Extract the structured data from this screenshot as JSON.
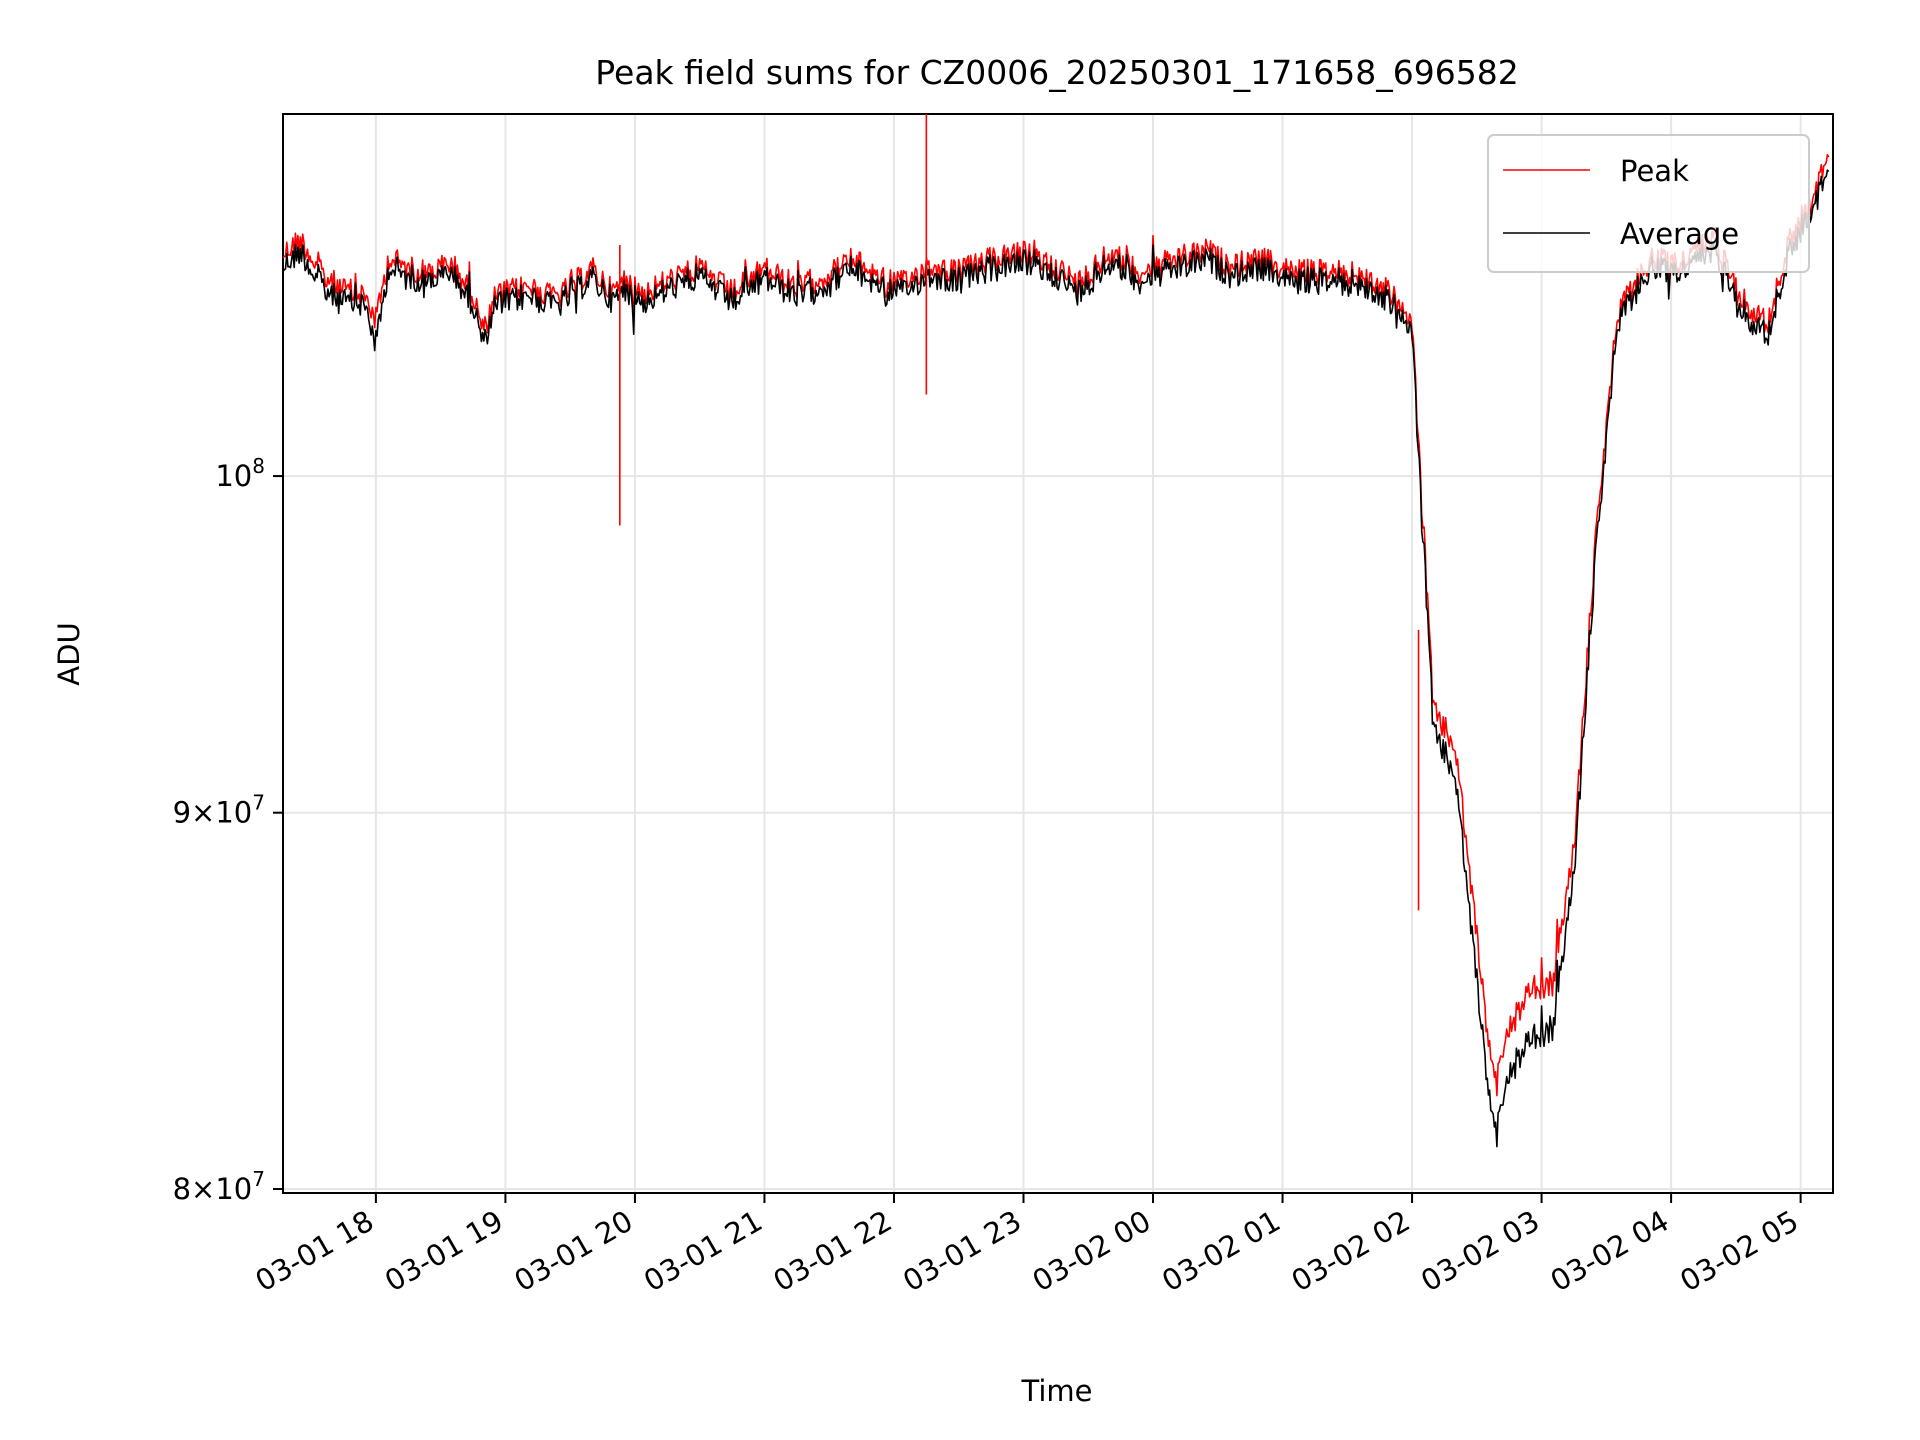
{
  "chart_data": {
    "type": "line",
    "title": "Peak field sums for CZ0006_20250301_171658_696582",
    "xlabel": "Time",
    "ylabel": "ADU",
    "x_ticks": [
      "03-01 18",
      "03-01 19",
      "03-01 20",
      "03-01 21",
      "03-01 22",
      "03-01 23",
      "03-02 00",
      "03-02 01",
      "03-02 02",
      "03-02 03",
      "03-02 04",
      "03-02 05"
    ],
    "y_ticks": [
      {
        "value": 80000000,
        "mantissa": "8",
        "base": "10",
        "exp": "7"
      },
      {
        "value": 90000000,
        "mantissa": "9",
        "base": "10",
        "exp": "7"
      },
      {
        "value": 100000000,
        "mantissa": "",
        "base": "10",
        "exp": "8"
      }
    ],
    "y_scale": "log",
    "xlim": [
      "2025-03-01 17:16:58",
      "2025-03-02 05:15:00"
    ],
    "ylim": [
      79900000,
      112000000
    ],
    "grid": true,
    "legend": {
      "position": "top-right"
    },
    "series": [
      {
        "name": "Peak",
        "color": "#ff0000",
        "x": [
          "2025-03-01 17:17",
          "2025-03-01 17:25",
          "2025-03-01 17:35",
          "2025-03-01 17:45",
          "2025-03-01 17:55",
          "2025-03-01 18:00",
          "2025-03-01 18:06",
          "2025-03-01 18:15",
          "2025-03-01 18:25",
          "2025-03-01 18:35",
          "2025-03-01 18:45",
          "2025-03-01 18:50",
          "2025-03-01 18:55",
          "2025-03-01 19:10",
          "2025-03-01 19:25",
          "2025-03-01 19:40",
          "2025-03-01 19:50",
          "2025-03-01 19:55",
          "2025-03-01 20:05",
          "2025-03-01 20:15",
          "2025-03-01 20:30",
          "2025-03-01 20:45",
          "2025-03-01 21:00",
          "2025-03-01 21:15",
          "2025-03-01 21:30",
          "2025-03-01 21:40",
          "2025-03-01 21:55",
          "2025-03-01 22:05",
          "2025-03-01 22:15",
          "2025-03-01 22:30",
          "2025-03-01 22:45",
          "2025-03-01 23:00",
          "2025-03-01 23:15",
          "2025-03-01 23:25",
          "2025-03-01 23:40",
          "2025-03-01 23:55",
          "2025-03-02 00:10",
          "2025-03-02 00:25",
          "2025-03-02 00:35",
          "2025-03-02 00:50",
          "2025-03-02 01:05",
          "2025-03-02 01:20",
          "2025-03-02 01:35",
          "2025-03-02 01:50",
          "2025-03-02 01:55",
          "2025-03-02 02:00",
          "2025-03-02 02:10",
          "2025-03-02 02:20",
          "2025-03-02 02:30",
          "2025-03-02 02:37",
          "2025-03-02 02:45",
          "2025-03-02 02:55",
          "2025-03-02 03:05",
          "2025-03-02 03:15",
          "2025-03-02 03:25",
          "2025-03-02 03:35",
          "2025-03-02 03:50",
          "2025-03-02 04:05",
          "2025-03-02 04:20",
          "2025-03-02 04:35",
          "2025-03-02 04:45",
          "2025-03-02 04:55",
          "2025-03-02 05:05",
          "2025-03-02 05:13"
        ],
        "y": [
          107200000,
          107700000,
          106500000,
          106000000,
          105800000,
          105000000,
          107100000,
          106700000,
          106600000,
          106900000,
          105800000,
          104600000,
          105800000,
          106100000,
          105800000,
          106700000,
          105900000,
          106300000,
          105900000,
          106300000,
          106700000,
          105900000,
          106700000,
          106100000,
          106500000,
          107000000,
          106400000,
          106200000,
          106800000,
          106600000,
          107000000,
          107200000,
          106800000,
          106200000,
          107200000,
          106600000,
          107000000,
          107300000,
          106800000,
          107000000,
          106600000,
          106600000,
          106500000,
          105900000,
          105300000,
          104900000,
          92900000,
          91900000,
          86600000,
          83000000,
          84100000,
          85200000,
          85300000,
          89000000,
          98000000,
          105200000,
          107000000,
          106900000,
          107800000,
          105500000,
          104900000,
          107700000,
          109000000,
          110500000
        ]
      },
      {
        "name": "Average",
        "color": "#000000",
        "x": [
          "2025-03-01 17:17",
          "2025-03-01 17:25",
          "2025-03-01 17:35",
          "2025-03-01 17:45",
          "2025-03-01 17:55",
          "2025-03-01 18:00",
          "2025-03-01 18:06",
          "2025-03-01 18:15",
          "2025-03-01 18:25",
          "2025-03-01 18:35",
          "2025-03-01 18:45",
          "2025-03-01 18:50",
          "2025-03-01 18:55",
          "2025-03-01 19:10",
          "2025-03-01 19:25",
          "2025-03-01 19:40",
          "2025-03-01 19:50",
          "2025-03-01 19:55",
          "2025-03-01 20:05",
          "2025-03-01 20:15",
          "2025-03-01 20:30",
          "2025-03-01 20:45",
          "2025-03-01 21:00",
          "2025-03-01 21:15",
          "2025-03-01 21:30",
          "2025-03-01 21:40",
          "2025-03-01 21:55",
          "2025-03-01 22:05",
          "2025-03-01 22:15",
          "2025-03-01 22:30",
          "2025-03-01 22:45",
          "2025-03-01 23:00",
          "2025-03-01 23:15",
          "2025-03-01 23:25",
          "2025-03-01 23:40",
          "2025-03-01 23:55",
          "2025-03-02 00:10",
          "2025-03-02 00:25",
          "2025-03-02 00:35",
          "2025-03-02 00:50",
          "2025-03-02 01:05",
          "2025-03-02 01:20",
          "2025-03-02 01:35",
          "2025-03-02 01:50",
          "2025-03-02 01:55",
          "2025-03-02 02:00",
          "2025-03-02 02:10",
          "2025-03-02 02:20",
          "2025-03-02 02:30",
          "2025-03-02 02:37",
          "2025-03-02 02:45",
          "2025-03-02 02:55",
          "2025-03-02 03:05",
          "2025-03-02 03:15",
          "2025-03-02 03:25",
          "2025-03-02 03:35",
          "2025-03-02 03:50",
          "2025-03-02 04:05",
          "2025-03-02 04:20",
          "2025-03-02 04:35",
          "2025-03-02 04:45",
          "2025-03-02 04:55",
          "2025-03-02 05:05",
          "2025-03-02 05:13"
        ],
        "y": [
          106800000,
          107300000,
          106100000,
          105600000,
          105500000,
          104200000,
          106800000,
          106400000,
          106300000,
          106600000,
          105500000,
          104200000,
          105500000,
          105800000,
          105500000,
          106400000,
          105600000,
          106000000,
          105600000,
          106000000,
          106400000,
          105600000,
          106400000,
          105800000,
          106200000,
          106700000,
          106100000,
          105900000,
          106500000,
          106300000,
          106700000,
          106900000,
          106500000,
          105900000,
          106900000,
          106300000,
          106700000,
          107000000,
          106500000,
          106700000,
          106300000,
          106300000,
          106200000,
          105600000,
          105000000,
          104600000,
          92300000,
          91100000,
          85400000,
          81700000,
          82900000,
          83900000,
          84100000,
          88300000,
          97500000,
          104900000,
          106700000,
          106600000,
          107400000,
          105100000,
          104500000,
          107300000,
          108700000,
          110000000
        ]
      }
    ],
    "annotations": [
      {
        "series": "Peak",
        "x": "2025-03-01 19:53",
        "y": 107500000
      },
      {
        "series": "Peak",
        "x": "2025-03-01 22:15",
        "y": 112000000
      },
      {
        "series": "Peak",
        "x": "2025-03-02 02:03",
        "y": 95300000
      }
    ]
  }
}
